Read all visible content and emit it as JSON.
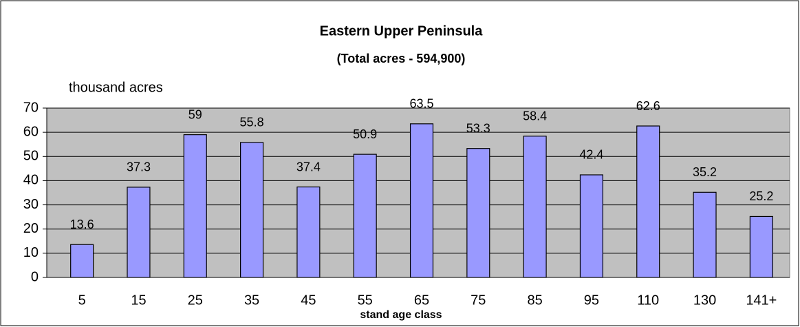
{
  "chart_data": {
    "type": "bar",
    "title": "Eastern Upper Peninsula",
    "subtitle": "(Total acres - 594,900)",
    "y_label": "thousand acres",
    "x_label": "stand age class",
    "categories": [
      "5",
      "15",
      "25",
      "35",
      "45",
      "55",
      "65",
      "75",
      "85",
      "95",
      "110",
      "130",
      "141+"
    ],
    "values": [
      13.6,
      37.3,
      59,
      55.8,
      37.4,
      50.9,
      63.5,
      53.3,
      58.4,
      42.4,
      62.6,
      35.2,
      25.2
    ],
    "color": "#9999ff",
    "ylim": [
      0,
      70
    ],
    "yticks": [
      0,
      10,
      20,
      30,
      40,
      50,
      60,
      70
    ],
    "grid": true
  }
}
